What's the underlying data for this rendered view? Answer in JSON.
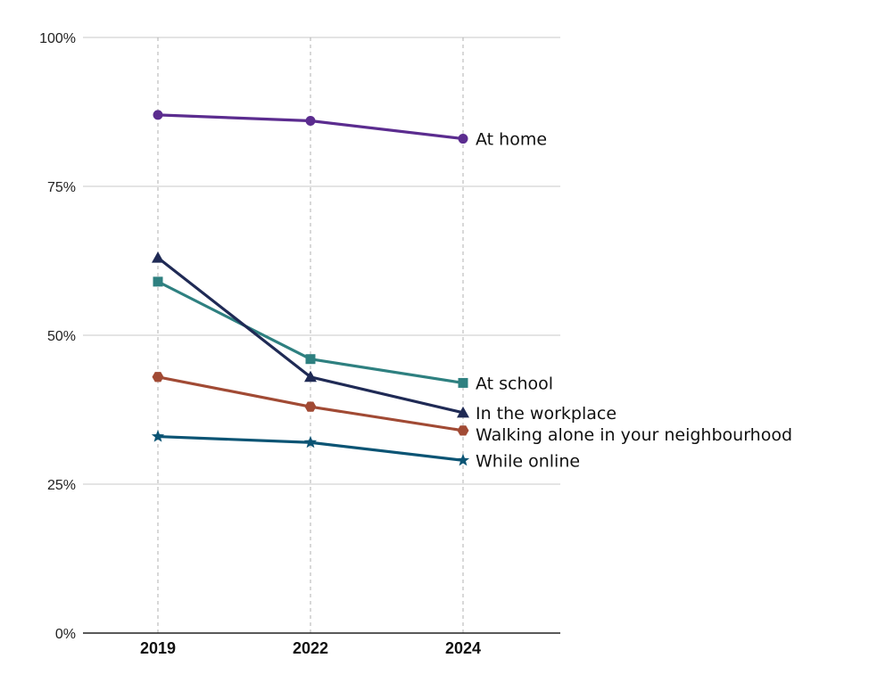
{
  "chart_data": {
    "type": "line",
    "title": "",
    "xlabel": "",
    "ylabel": "",
    "x": [
      "2019",
      "2022",
      "2024"
    ],
    "ylim": [
      0,
      100
    ],
    "y_ticks": [
      "0%",
      "25%",
      "50%",
      "75%",
      "100%"
    ],
    "grid": {
      "horizontal": true,
      "vertical_dashed": true
    },
    "legend": "direct labels at right end of lines",
    "series": [
      {
        "name": "At home",
        "values": [
          87,
          86,
          83
        ],
        "color": "#5B2C8F",
        "marker": "circle"
      },
      {
        "name": "At school",
        "values": [
          59,
          46,
          42
        ],
        "color": "#2E8080",
        "marker": "square"
      },
      {
        "name": "In the workplace",
        "values": [
          63,
          43,
          37
        ],
        "color": "#1F2A55",
        "marker": "triangle"
      },
      {
        "name": "Walking alone in your neighbourhood",
        "values": [
          43,
          38,
          34
        ],
        "color": "#A14A34",
        "marker": "hexagon"
      },
      {
        "name": "While online",
        "values": [
          33,
          32,
          29
        ],
        "color": "#0B5474",
        "marker": "star"
      }
    ]
  }
}
